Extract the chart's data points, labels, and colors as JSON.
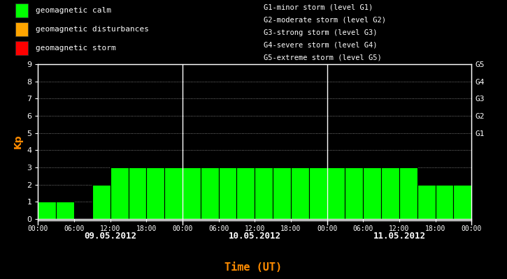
{
  "bg_color": "#000000",
  "plot_bg_color": "#000000",
  "bar_color": "#00ff00",
  "bar_edge_color": "#000000",
  "text_color": "#ffffff",
  "axis_color": "#ffffff",
  "grid_color": "#ffffff",
  "ylabel_color": "#ff8c00",
  "xlabel_color": "#ff8c00",
  "ylim": [
    0,
    9
  ],
  "yticks": [
    0,
    1,
    2,
    3,
    4,
    5,
    6,
    7,
    8,
    9
  ],
  "title_x_label": "Time (UT)",
  "ylabel": "Kp",
  "legend_items": [
    {
      "label": "geomagnetic calm",
      "color": "#00ff00"
    },
    {
      "label": "geomagnetic disturbances",
      "color": "#ffa500"
    },
    {
      "label": "geomagnetic storm",
      "color": "#ff0000"
    }
  ],
  "right_legend": [
    "G1-minor storm (level G1)",
    "G2-moderate storm (level G2)",
    "G3-strong storm (level G3)",
    "G4-severe storm (level G4)",
    "G5-extreme storm (level G5)"
  ],
  "right_ytick_labels": [
    "G1",
    "G2",
    "G3",
    "G4",
    "G5"
  ],
  "right_ytick_positions": [
    5,
    6,
    7,
    8,
    9
  ],
  "day_labels": [
    "09.05.2012",
    "10.05.2012",
    "11.05.2012"
  ],
  "day_dividers": [
    8,
    16
  ],
  "bars_day1": [
    1,
    1,
    0,
    2,
    3,
    3,
    3,
    3
  ],
  "bars_day2": [
    3,
    3,
    3,
    3,
    3,
    3,
    3,
    3
  ],
  "bars_day3": [
    3,
    3,
    3,
    3,
    3,
    2,
    2,
    2
  ],
  "time_tick_labels": [
    "00:00",
    "06:00",
    "12:00",
    "18:00",
    "00:00",
    "06:00",
    "12:00",
    "18:00",
    "00:00",
    "06:00",
    "12:00",
    "18:00",
    "00:00"
  ],
  "time_tick_positions": [
    0,
    2,
    4,
    6,
    8,
    10,
    12,
    14,
    16,
    18,
    20,
    22,
    24
  ]
}
